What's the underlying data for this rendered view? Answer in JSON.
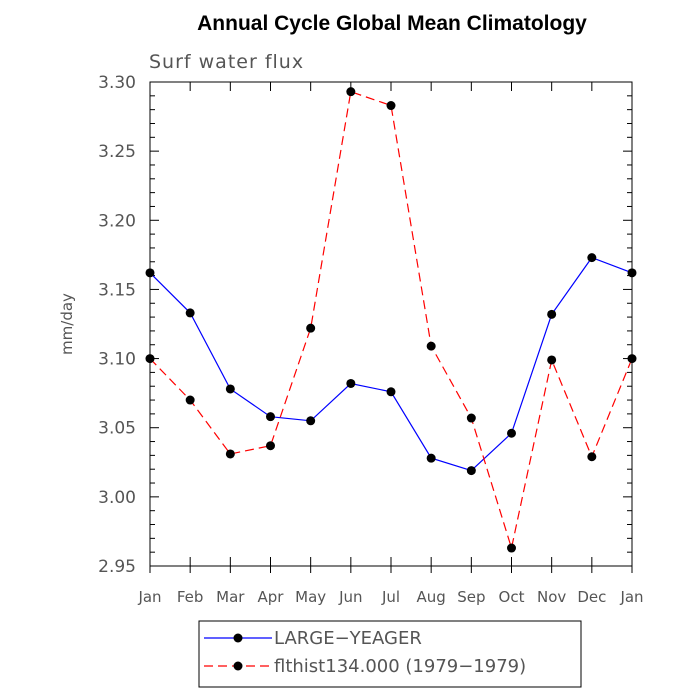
{
  "chart_data": {
    "type": "line",
    "title": "Annual Cycle Global Mean Climatology",
    "subtitle": "Surf water flux",
    "xlabel": "",
    "ylabel": "mm/day",
    "categories": [
      "Jan",
      "Feb",
      "Mar",
      "Apr",
      "May",
      "Jun",
      "Jul",
      "Aug",
      "Sep",
      "Oct",
      "Nov",
      "Dec",
      "Jan"
    ],
    "yticks": [
      "2.95",
      "3.00",
      "3.05",
      "3.10",
      "3.15",
      "3.20",
      "3.25",
      "3.30"
    ],
    "ylim": [
      2.95,
      3.3
    ],
    "grid": false,
    "legend_position": "bottom",
    "series": [
      {
        "name": "LARGE−YEAGER",
        "color": "#0000ff",
        "line_style": "solid",
        "marker": "filled-circle",
        "values": [
          3.162,
          3.133,
          3.078,
          3.058,
          3.055,
          3.082,
          3.076,
          3.028,
          3.019,
          3.046,
          3.132,
          3.173,
          3.162
        ]
      },
      {
        "name": "flthist134.000 (1979−1979)",
        "color": "#ff0000",
        "line_style": "dashed",
        "marker": "filled-circle",
        "values": [
          3.1,
          3.07,
          3.031,
          3.037,
          3.122,
          3.293,
          3.283,
          3.109,
          3.057,
          2.963,
          3.099,
          3.029,
          3.1
        ]
      }
    ]
  }
}
